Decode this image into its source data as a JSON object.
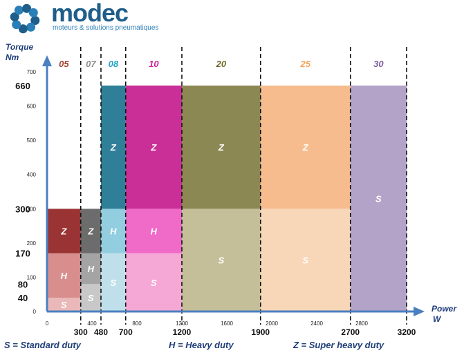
{
  "brand": {
    "name": "modec",
    "tagline": "moteurs & solutions pneumatiques",
    "color": "#1f5e8a"
  },
  "chart_data": {
    "type": "bar",
    "ylabel_lines": [
      "Torque",
      "Nm"
    ],
    "xlabel_lines": [
      "Power",
      "W"
    ],
    "ylim": [
      0,
      700
    ],
    "xlim": [
      0,
      3200
    ],
    "grid": false,
    "y_small_ticks": [
      {
        "value": 0,
        "label": "0"
      },
      {
        "value": 100,
        "label": "100"
      },
      {
        "value": 200,
        "label": "200"
      },
      {
        "value": 300,
        "label": "300"
      },
      {
        "value": 400,
        "label": "400"
      },
      {
        "value": 500,
        "label": "500"
      },
      {
        "value": 600,
        "label": "600"
      },
      {
        "value": 700,
        "label": "700"
      }
    ],
    "y_big_ticks": [
      {
        "value": 660,
        "label": "660"
      },
      {
        "value": 300,
        "label": "300"
      },
      {
        "value": 170,
        "label": "170"
      },
      {
        "value": 80,
        "label": "80"
      },
      {
        "value": 40,
        "label": "40"
      }
    ],
    "x_small_ticks": [
      {
        "value": 0,
        "label": "0"
      },
      {
        "value": 400,
        "label": "400"
      },
      {
        "value": 800,
        "label": "800"
      },
      {
        "value": 1200,
        "label": "1200"
      },
      {
        "value": 1600,
        "label": "1600"
      },
      {
        "value": 2000,
        "label": "2000"
      },
      {
        "value": 2400,
        "label": "2400"
      },
      {
        "value": 2800,
        "label": "2800"
      }
    ],
    "x_big_ticks": [
      {
        "value": 300,
        "label": "300"
      },
      {
        "value": 480,
        "label": "480"
      },
      {
        "value": 700,
        "label": "700"
      },
      {
        "value": 1200,
        "label": "1200"
      },
      {
        "value": 1900,
        "label": "1900"
      },
      {
        "value": 2700,
        "label": "2700"
      },
      {
        "value": 3200,
        "label": "3200"
      }
    ],
    "dividers": [
      300,
      480,
      700,
      1200,
      1900,
      2700,
      3200
    ],
    "models": [
      {
        "label": "05",
        "color": "#a0402e",
        "x0": 0,
        "x1": 300
      },
      {
        "label": "07",
        "color": "#8c8c8c",
        "x0": 300,
        "x1": 480
      },
      {
        "label": "08",
        "color": "#1fa3c8",
        "x0": 480,
        "x1": 700
      },
      {
        "label": "10",
        "color": "#c8249a",
        "x0": 700,
        "x1": 1200
      },
      {
        "label": "20",
        "color": "#6f6a2a",
        "x0": 1200,
        "x1": 1900
      },
      {
        "label": "25",
        "color": "#f4a25a",
        "x0": 1900,
        "x1": 2700
      },
      {
        "label": "30",
        "color": "#7a5a9a",
        "x0": 2700,
        "x1": 3200
      }
    ],
    "regions": [
      {
        "model": "05",
        "duty": "S",
        "x0": 0,
        "x1": 300,
        "y0": 0,
        "y1": 40,
        "color": "#eab8b8"
      },
      {
        "model": "05",
        "duty": "H",
        "x0": 0,
        "x1": 300,
        "y0": 40,
        "y1": 170,
        "color": "#d98e8e"
      },
      {
        "model": "05",
        "duty": "Z",
        "x0": 0,
        "x1": 300,
        "y0": 170,
        "y1": 300,
        "color": "#9a3434"
      },
      {
        "model": "07",
        "duty": "S",
        "x0": 300,
        "x1": 480,
        "y0": 0,
        "y1": 80,
        "color": "#c8c8c8"
      },
      {
        "model": "07",
        "duty": "H",
        "x0": 300,
        "x1": 480,
        "y0": 80,
        "y1": 170,
        "color": "#a4a4a4"
      },
      {
        "model": "07",
        "duty": "Z",
        "x0": 300,
        "x1": 480,
        "y0": 170,
        "y1": 300,
        "color": "#6c6c6c"
      },
      {
        "model": "08",
        "duty": "S",
        "x0": 480,
        "x1": 700,
        "y0": 0,
        "y1": 170,
        "color": "#bfe0ea"
      },
      {
        "model": "08",
        "duty": "H",
        "x0": 480,
        "x1": 700,
        "y0": 170,
        "y1": 300,
        "color": "#92cde0"
      },
      {
        "model": "08",
        "duty": "Z",
        "x0": 480,
        "x1": 700,
        "y0": 300,
        "y1": 660,
        "color": "#2f7f98"
      },
      {
        "model": "10",
        "duty": "S",
        "x0": 700,
        "x1": 1200,
        "y0": 0,
        "y1": 170,
        "color": "#f5a8d6"
      },
      {
        "model": "10",
        "duty": "H",
        "x0": 700,
        "x1": 1200,
        "y0": 170,
        "y1": 300,
        "color": "#f06ac8"
      },
      {
        "model": "10",
        "duty": "Z",
        "x0": 700,
        "x1": 1200,
        "y0": 300,
        "y1": 660,
        "color": "#c92f96"
      },
      {
        "model": "20",
        "duty": "S",
        "x0": 1200,
        "x1": 1900,
        "y0": 0,
        "y1": 300,
        "color": "#c4bf98"
      },
      {
        "model": "20",
        "duty": "Z",
        "x0": 1200,
        "x1": 1900,
        "y0": 300,
        "y1": 660,
        "color": "#8c8854"
      },
      {
        "model": "25",
        "duty": "S",
        "x0": 1900,
        "x1": 2700,
        "y0": 0,
        "y1": 300,
        "color": "#f8d6b8"
      },
      {
        "model": "25",
        "duty": "Z",
        "x0": 1900,
        "x1": 2700,
        "y0": 300,
        "y1": 660,
        "color": "#f6bc8e"
      },
      {
        "model": "30",
        "duty": "S",
        "x0": 2700,
        "x1": 3200,
        "y0": 0,
        "y1": 660,
        "color": "#b3a3c8"
      }
    ],
    "duty_legend": [
      {
        "text": "S = Standard duty"
      },
      {
        "text": "H = Heavy duty"
      },
      {
        "text": "Z = Super heavy duty"
      }
    ]
  }
}
